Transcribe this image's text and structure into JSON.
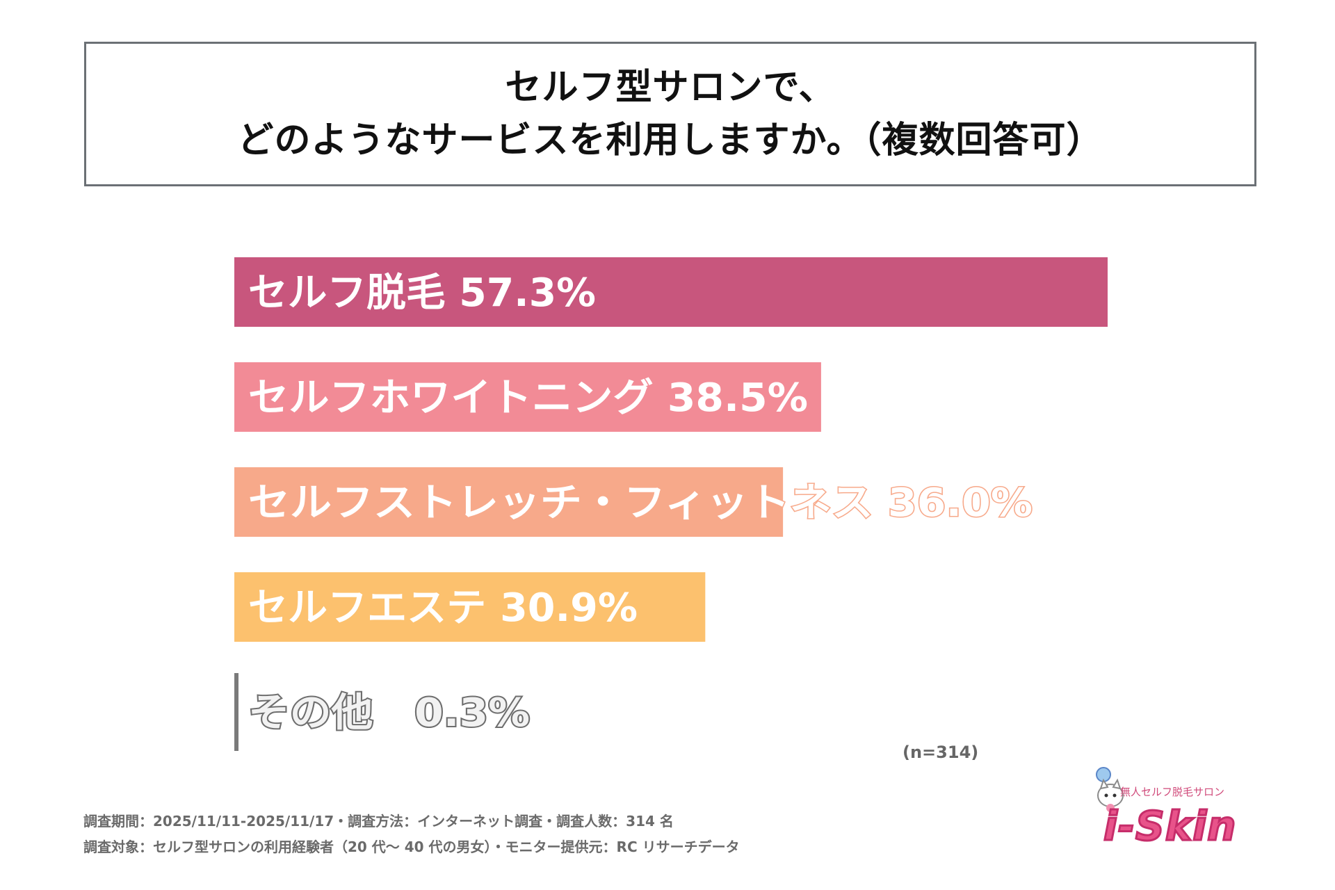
{
  "title": {
    "line1": "セルフ型サロンで、",
    "line2": "どのようなサービスを利用しますか。（複数回答可）"
  },
  "chart_data": {
    "type": "bar",
    "orientation": "horizontal",
    "title": "セルフ型サロンで、どのようなサービスを利用しますか。（複数回答可）",
    "categories": [
      "セルフ脱毛",
      "セルフホワイトニング",
      "セルフストレッチ・フィットネス",
      "セルフエステ",
      "その他"
    ],
    "values": [
      57.3,
      38.5,
      36.0,
      30.9,
      0.3
    ],
    "labels": [
      "セルフ脱毛  57.3%",
      "セルフホワイトニング  38.5%",
      "セルフストレッチ・フィットネス  36.0%",
      "セルフエステ  30.9%",
      "その他　0.3%"
    ],
    "colors": [
      "#c8567d",
      "#f28b96",
      "#f7a98a",
      "#fcc16e",
      "#7a7a7a"
    ],
    "unit": "%",
    "xlim": [
      0,
      100
    ],
    "xlabel": "",
    "ylabel": "",
    "grid": false
  },
  "sample_note": "(n=314)",
  "footnote": {
    "line1": "調査期間：2025/11/11-2025/11/17・調査方法：インターネット調査・調査人数：314 名",
    "line2": "調査対象：セルフ型サロンの利用経験者（20 代～ 40 代の男女）・モニター提供元：RC リサーチデータ"
  },
  "logo": {
    "subtitle": "無人セルフ脱毛サロン",
    "name": "i-Skin"
  }
}
